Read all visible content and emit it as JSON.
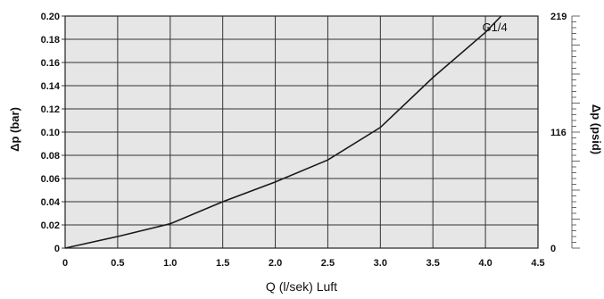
{
  "chart_data": {
    "type": "line",
    "xlabel": "Q (l/sek) Luft",
    "ylabel": "Δp  (bar)",
    "y2label": "Δp  (psid)",
    "xlim": [
      0,
      4.5
    ],
    "ylim": [
      0,
      0.2
    ],
    "x_ticks": [
      "0",
      "0.5",
      "1.0",
      "1.5",
      "2.0",
      "2.5",
      "3.0",
      "3.5",
      "4.0",
      "4.5"
    ],
    "y_ticks": [
      "0",
      "0.02",
      "0.04",
      "0.06",
      "0.08",
      "0.10",
      "0.12",
      "0.14",
      "0.16",
      "0.18",
      "0.20"
    ],
    "y2_ticks": [
      {
        "label": "0",
        "y": 0
      },
      {
        "label": "116",
        "y": 0.1
      },
      {
        "label": "219",
        "y": 0.2
      }
    ],
    "grid": true,
    "background": "#e6e6e6",
    "line_color": "#1a1a1a",
    "series": [
      {
        "x": [
          0,
          0.5,
          1.0,
          1.5,
          2.0,
          2.5,
          3.0,
          3.5,
          4.0,
          4.15
        ],
        "y": [
          0,
          0.01,
          0.021,
          0.04,
          0.057,
          0.076,
          0.104,
          0.147,
          0.186,
          0.2
        ]
      }
    ],
    "annotation": "G1/4"
  }
}
